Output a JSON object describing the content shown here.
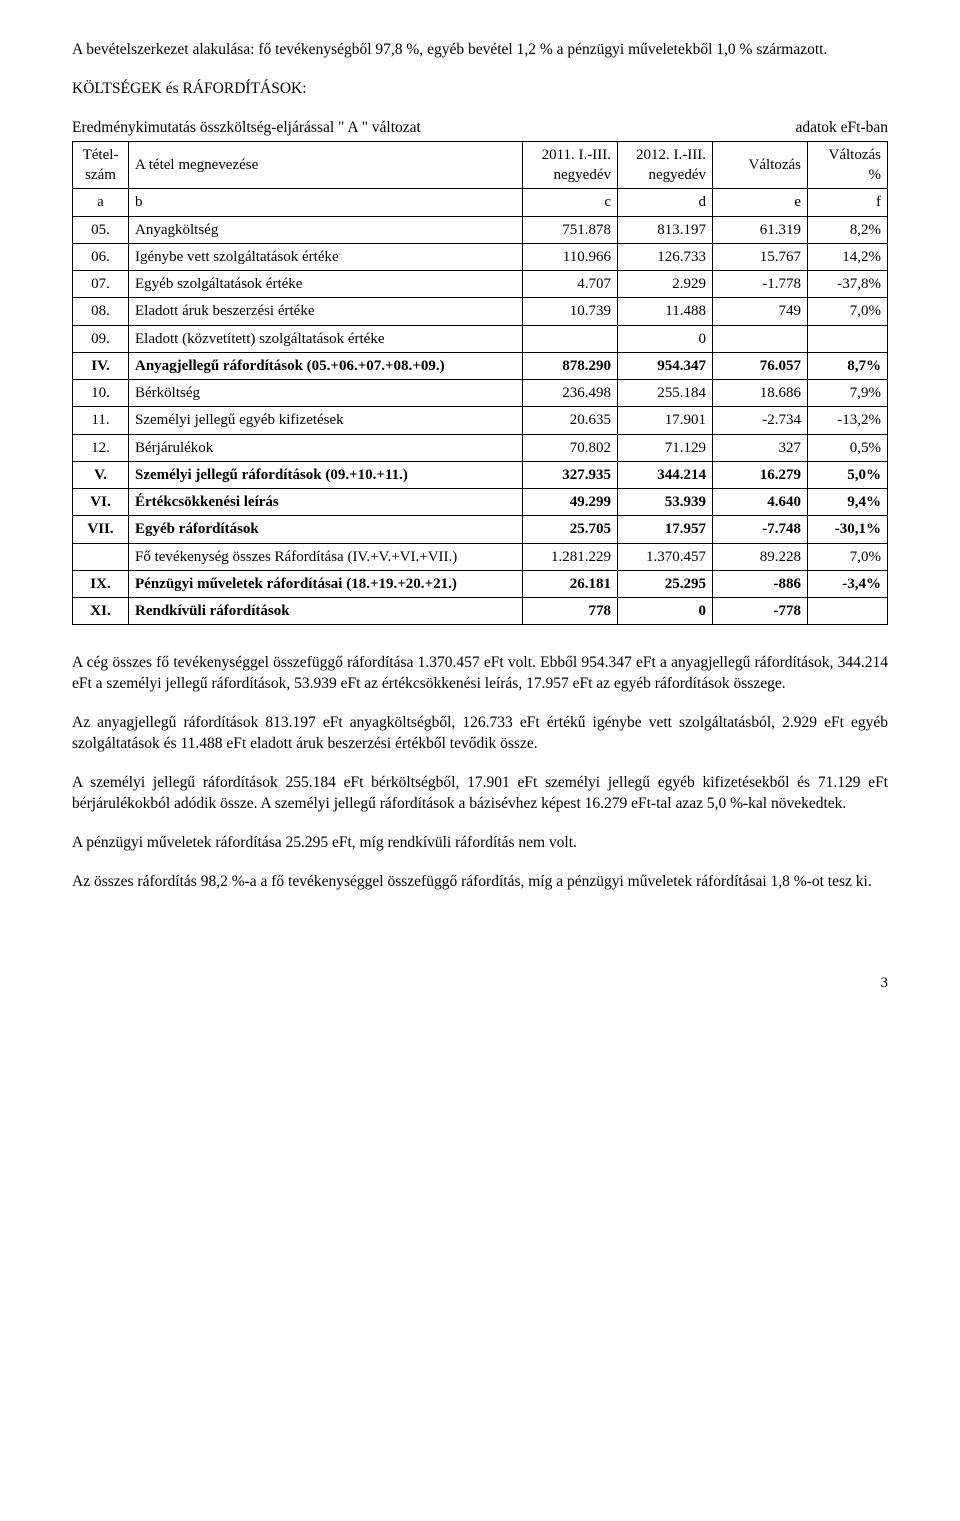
{
  "intro_para": "A bevételszerkezet alakulása: fő tevékenységből 97,8 %, egyéb bevétel 1,2 % a pénzügyi műveletekből 1,0 % származott.",
  "section_title": "KÖLTSÉGEK és RÁFORDÍTÁSOK:",
  "subtitle_left": "Eredménykimutatás összköltség-eljárással \" A \" változat",
  "subtitle_right": "adatok eFt-ban",
  "headers": {
    "col_a": "Tétel-szám",
    "col_b": "A tétel megnevezése",
    "col_c": "2011. I.-III. negyedév",
    "col_d": "2012. I.-III. negyedév",
    "col_e": "Változás",
    "col_f": "Változás %",
    "sub_a": "a",
    "sub_b": "b",
    "sub_c": "c",
    "sub_d": "d",
    "sub_e": "e",
    "sub_f": "f"
  },
  "rows": [
    {
      "a": "05.",
      "b": "Anyagköltség",
      "c": "751.878",
      "d": "813.197",
      "e": "61.319",
      "f": "8,2%",
      "bold": false
    },
    {
      "a": "06.",
      "b": "Igénybe vett szolgáltatások értéke",
      "c": "110.966",
      "d": "126.733",
      "e": "15.767",
      "f": "14,2%",
      "bold": false
    },
    {
      "a": "07.",
      "b": "Egyéb szolgáltatások értéke",
      "c": "4.707",
      "d": "2.929",
      "e": "-1.778",
      "f": "-37,8%",
      "bold": false
    },
    {
      "a": "08.",
      "b": "Eladott áruk beszerzési értéke",
      "c": "10.739",
      "d": "11.488",
      "e": "749",
      "f": "7,0%",
      "bold": false
    },
    {
      "a": "09.",
      "b": "Eladott (közvetített) szolgáltatások értéke",
      "c": "",
      "d": "0",
      "e": "",
      "f": "",
      "bold": false
    },
    {
      "a": "IV.",
      "b": "Anyagjellegű ráfordítások (05.+06.+07.+08.+09.)",
      "c": "878.290",
      "d": "954.347",
      "e": "76.057",
      "f": "8,7%",
      "bold": true
    },
    {
      "a": "10.",
      "b": "Bérköltség",
      "c": "236.498",
      "d": "255.184",
      "e": "18.686",
      "f": "7,9%",
      "bold": false
    },
    {
      "a": "11.",
      "b": "Személyi jellegű egyéb kifizetések",
      "c": "20.635",
      "d": "17.901",
      "e": "-2.734",
      "f": "-13,2%",
      "bold": false
    },
    {
      "a": "12.",
      "b": "Bérjárulékok",
      "c": "70.802",
      "d": "71.129",
      "e": "327",
      "f": "0,5%",
      "bold": false
    },
    {
      "a": "V.",
      "b": "Személyi jellegű ráfordítások (09.+10.+11.)",
      "c": "327.935",
      "d": "344.214",
      "e": "16.279",
      "f": "5,0%",
      "bold": true
    },
    {
      "a": "VI.",
      "b": "Értékcsökkenési leírás",
      "c": "49.299",
      "d": "53.939",
      "e": "4.640",
      "f": "9,4%",
      "bold": true
    },
    {
      "a": "VII.",
      "b": "Egyéb ráfordítások",
      "c": "25.705",
      "d": "17.957",
      "e": "-7.748",
      "f": "-30,1%",
      "bold": true
    },
    {
      "a": "",
      "b": "Fő tevékenység összes Ráfordítása (IV.+V.+VI.+VII.)",
      "c": "1.281.229",
      "d": "1.370.457",
      "e": "89.228",
      "f": "7,0%",
      "bold": false
    },
    {
      "a": "IX.",
      "b": "Pénzügyi műveletek ráfordításai (18.+19.+20.+21.)",
      "c": "26.181",
      "d": "25.295",
      "e": "-886",
      "f": "-3,4%",
      "bold": true
    },
    {
      "a": "XI.",
      "b": "Rendkívüli ráfordítások",
      "c": "778",
      "d": "0",
      "e": "-778",
      "f": "",
      "bold": true
    }
  ],
  "p1": "A cég összes fő tevékenységgel összefüggő ráfordítása 1.370.457 eFt volt. Ebből 954.347 eFt a anyagjellegű ráfordítások, 344.214 eFt a személyi jellegű ráfordítások, 53.939 eFt az értékcsökkenési leírás, 17.957 eFt az egyéb ráfordítások összege.",
  "p2": "Az anyagjellegű ráfordítások 813.197 eFt anyagköltségből, 126.733 eFt értékű igénybe vett szolgáltatásból, 2.929 eFt egyéb szolgáltatások és 11.488 eFt eladott áruk beszerzési értékből tevődik össze.",
  "p3": "A személyi jellegű ráfordítások 255.184 eFt bérköltségből, 17.901 eFt személyi jellegű egyéb kifizetésekből és 71.129 eFt bérjárulékokból adódik össze. A személyi jellegű ráfordítások a bázisévhez képest 16.279 eFt-tal azaz 5,0 %-kal növekedtek.",
  "p4": "A pénzügyi műveletek ráfordítása 25.295 eFt, míg rendkívüli ráfordítás nem volt.",
  "p5": "Az összes ráfordítás 98,2 %-a a fő tevékenységgel összefüggő ráfordítás, míg a pénzügyi műveletek ráfordításai 1,8 %-ot tesz ki.",
  "page_num": "3"
}
